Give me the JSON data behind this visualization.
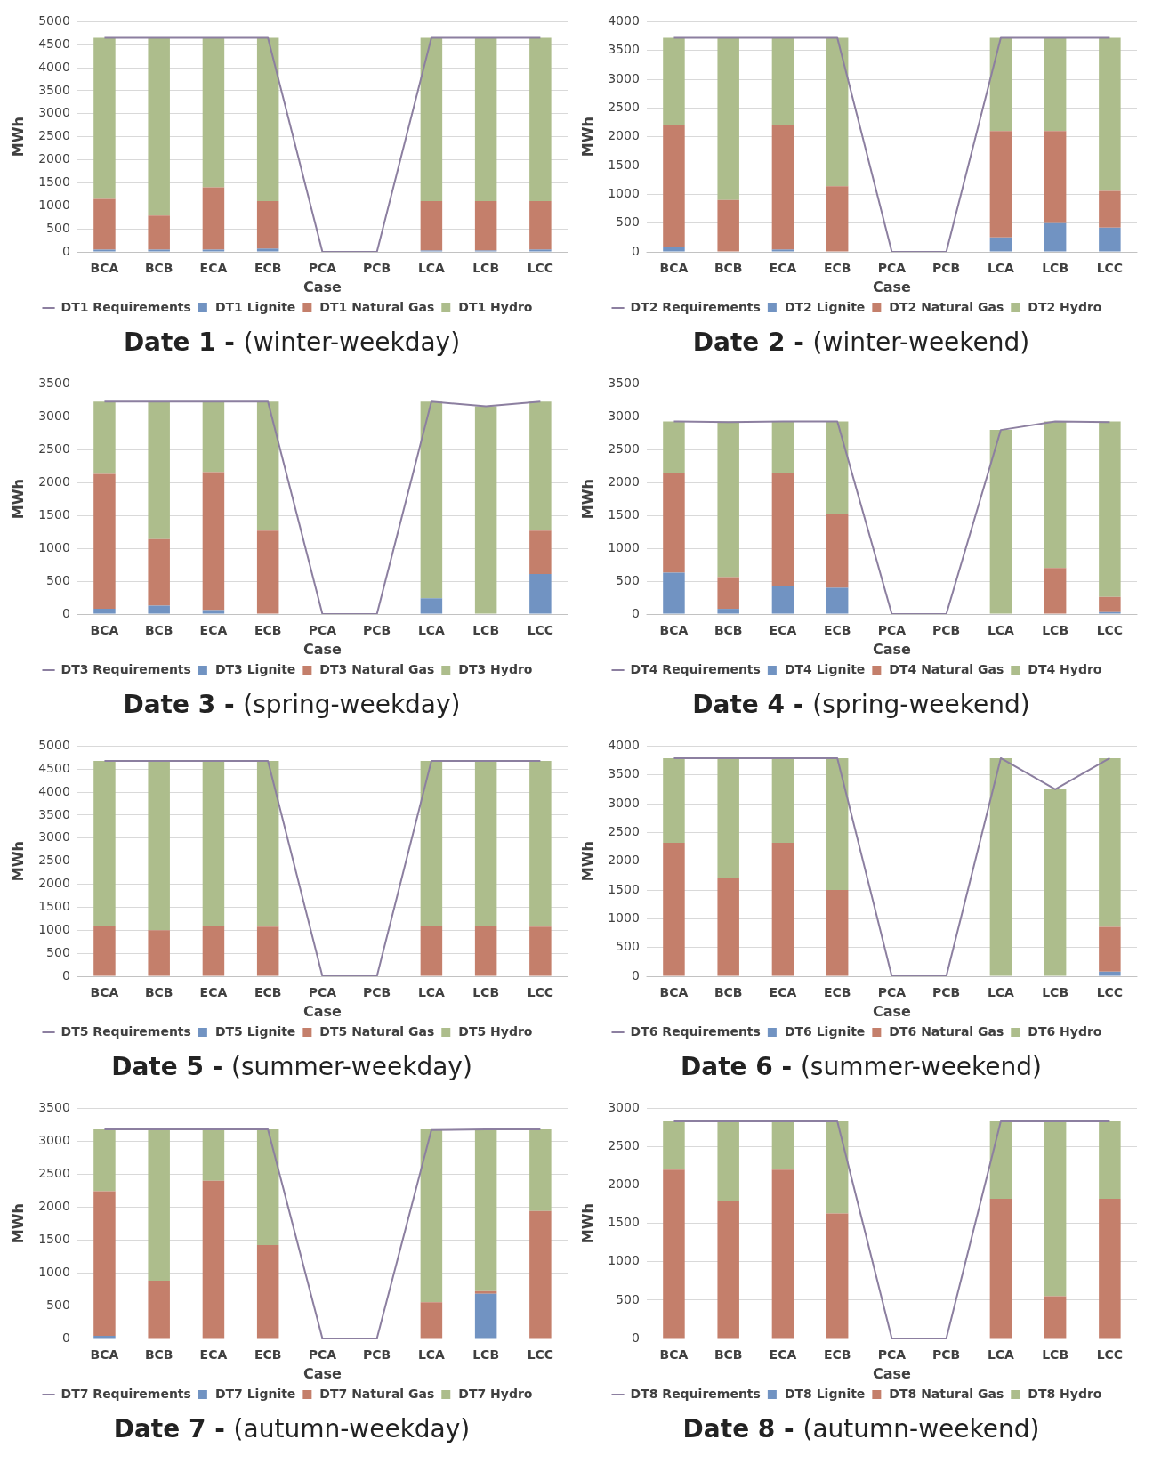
{
  "chart_data": [
    {
      "type": "bar",
      "title": "Date 1 - (winter-weekday)",
      "xlabel": "Case",
      "ylabel": "MWh",
      "stacked": true,
      "grid": "y",
      "legend": "bottom",
      "categories": [
        "BCA",
        "BCB",
        "ECA",
        "ECB",
        "PCA",
        "PCB",
        "LCA",
        "LCB",
        "LCC"
      ],
      "ylim": [
        0,
        5000
      ],
      "yticks": [
        0,
        500,
        1000,
        1500,
        2000,
        2500,
        3000,
        3500,
        4000,
        4500,
        5000
      ],
      "series": [
        {
          "name": "DT1 Lignite",
          "color": "#7193c2",
          "values": [
            50,
            50,
            50,
            70,
            0,
            0,
            30,
            30,
            50
          ]
        },
        {
          "name": "DT1 Natural Gas",
          "color": "#c47f6b",
          "values": [
            1100,
            740,
            1350,
            1030,
            0,
            0,
            1070,
            1070,
            1050
          ]
        },
        {
          "name": "DT1 Hydro",
          "color": "#adbd8c",
          "values": [
            3500,
            3860,
            3250,
            3550,
            0,
            0,
            3550,
            3550,
            3550
          ]
        },
        {
          "name": "DT1 Requirements",
          "type": "line",
          "color": "#8c7fa0",
          "values": [
            4650,
            4650,
            4650,
            4650,
            0,
            0,
            4650,
            4650,
            4650
          ]
        }
      ]
    },
    {
      "type": "bar",
      "title": "Date 2 - (winter-weekend)",
      "xlabel": "Case",
      "ylabel": "MWh",
      "stacked": true,
      "grid": "y",
      "legend": "bottom",
      "categories": [
        "BCA",
        "BCB",
        "ECA",
        "ECB",
        "PCA",
        "PCB",
        "LCA",
        "LCB",
        "LCC"
      ],
      "ylim": [
        0,
        4000
      ],
      "yticks": [
        0,
        500,
        1000,
        1500,
        2000,
        2500,
        3000,
        3500,
        4000
      ],
      "series": [
        {
          "name": "DT2 Lignite",
          "color": "#7193c2",
          "values": [
            80,
            0,
            40,
            0,
            0,
            0,
            250,
            500,
            420
          ]
        },
        {
          "name": "DT2 Natural Gas",
          "color": "#c47f6b",
          "values": [
            2120,
            900,
            2160,
            1140,
            0,
            0,
            1850,
            1600,
            640
          ]
        },
        {
          "name": "DT2 Hydro",
          "color": "#adbd8c",
          "values": [
            1520,
            2820,
            1520,
            2580,
            0,
            0,
            1620,
            1620,
            2660
          ]
        },
        {
          "name": "DT2 Requirements",
          "type": "line",
          "color": "#8c7fa0",
          "values": [
            3720,
            3720,
            3720,
            3720,
            0,
            0,
            3720,
            3720,
            3720
          ]
        }
      ]
    },
    {
      "type": "bar",
      "title": "Date 3 - (spring-weekday)",
      "xlabel": "Case",
      "ylabel": "MWh",
      "stacked": true,
      "grid": "y",
      "legend": "bottom",
      "categories": [
        "BCA",
        "BCB",
        "ECA",
        "ECB",
        "PCA",
        "PCB",
        "LCA",
        "LCB",
        "LCC"
      ],
      "ylim": [
        0,
        3500
      ],
      "yticks": [
        0,
        500,
        1000,
        1500,
        2000,
        2500,
        3000,
        3500
      ],
      "series": [
        {
          "name": "DT3 Lignite",
          "color": "#7193c2",
          "values": [
            80,
            130,
            60,
            0,
            0,
            0,
            240,
            0,
            610
          ]
        },
        {
          "name": "DT3 Natural Gas",
          "color": "#c47f6b",
          "values": [
            2050,
            1010,
            2100,
            1270,
            0,
            0,
            0,
            0,
            660
          ]
        },
        {
          "name": "DT3 Hydro",
          "color": "#adbd8c",
          "values": [
            1100,
            2090,
            1070,
            1960,
            0,
            0,
            2990,
            3160,
            1960
          ]
        },
        {
          "name": "DT3 Requirements",
          "type": "line",
          "color": "#8c7fa0",
          "values": [
            3230,
            3230,
            3230,
            3230,
            0,
            0,
            3230,
            3160,
            3230
          ]
        }
      ]
    },
    {
      "type": "bar",
      "title": "Date 4 - (spring-weekend)",
      "xlabel": "Case",
      "ylabel": "MWh",
      "stacked": true,
      "grid": "y",
      "legend": "bottom",
      "categories": [
        "BCA",
        "BCB",
        "ECA",
        "ECB",
        "PCA",
        "PCB",
        "LCA",
        "LCB",
        "LCC"
      ],
      "ylim": [
        0,
        3500
      ],
      "yticks": [
        0,
        500,
        1000,
        1500,
        2000,
        2500,
        3000,
        3500
      ],
      "series": [
        {
          "name": "DT4 Lignite",
          "color": "#7193c2",
          "values": [
            630,
            80,
            430,
            400,
            0,
            0,
            0,
            0,
            30
          ]
        },
        {
          "name": "DT4 Natural Gas",
          "color": "#c47f6b",
          "values": [
            1510,
            480,
            1710,
            1130,
            0,
            0,
            0,
            700,
            230
          ]
        },
        {
          "name": "DT4 Hydro",
          "color": "#adbd8c",
          "values": [
            790,
            2370,
            790,
            1400,
            0,
            0,
            2800,
            2230,
            2670
          ]
        },
        {
          "name": "DT4 Requirements",
          "type": "line",
          "color": "#8c7fa0",
          "values": [
            2930,
            2920,
            2930,
            2930,
            0,
            0,
            2800,
            2930,
            2920
          ]
        }
      ]
    },
    {
      "type": "bar",
      "title": "Date 5 - (summer-weekday)",
      "xlabel": "Case",
      "ylabel": "MWh",
      "stacked": true,
      "grid": "y",
      "legend": "bottom",
      "categories": [
        "BCA",
        "BCB",
        "ECA",
        "ECB",
        "PCA",
        "PCB",
        "LCA",
        "LCB",
        "LCC"
      ],
      "ylim": [
        0,
        5000
      ],
      "yticks": [
        0,
        500,
        1000,
        1500,
        2000,
        2500,
        3000,
        3500,
        4000,
        4500,
        5000
      ],
      "series": [
        {
          "name": "DT5 Lignite",
          "color": "#7193c2",
          "values": [
            0,
            0,
            0,
            0,
            0,
            0,
            0,
            0,
            0
          ]
        },
        {
          "name": "DT5 Natural Gas",
          "color": "#c47f6b",
          "values": [
            1100,
            1000,
            1100,
            1080,
            0,
            0,
            1100,
            1100,
            1080
          ]
        },
        {
          "name": "DT5 Hydro",
          "color": "#adbd8c",
          "values": [
            3580,
            3680,
            3580,
            3600,
            0,
            0,
            3580,
            3580,
            3600
          ]
        },
        {
          "name": "DT5 Requirements",
          "type": "line",
          "color": "#8c7fa0",
          "values": [
            4680,
            4680,
            4680,
            4680,
            0,
            0,
            4680,
            4680,
            4680
          ]
        }
      ]
    },
    {
      "type": "bar",
      "title": "Date 6 - (summer-weekend)",
      "xlabel": "Case",
      "ylabel": "MWh",
      "stacked": true,
      "grid": "y",
      "legend": "bottom",
      "categories": [
        "BCA",
        "BCB",
        "ECA",
        "ECB",
        "PCA",
        "PCB",
        "LCA",
        "LCB",
        "LCC"
      ],
      "ylim": [
        0,
        4000
      ],
      "yticks": [
        0,
        500,
        1000,
        1500,
        2000,
        2500,
        3000,
        3500,
        4000
      ],
      "series": [
        {
          "name": "DT6 Lignite",
          "color": "#7193c2",
          "values": [
            0,
            0,
            0,
            0,
            0,
            0,
            0,
            0,
            80
          ]
        },
        {
          "name": "DT6 Natural Gas",
          "color": "#c47f6b",
          "values": [
            2320,
            1710,
            2320,
            1500,
            0,
            0,
            0,
            0,
            780
          ]
        },
        {
          "name": "DT6 Hydro",
          "color": "#adbd8c",
          "values": [
            1470,
            2080,
            1470,
            2290,
            0,
            0,
            3790,
            3250,
            2930
          ]
        },
        {
          "name": "DT6 Requirements",
          "type": "line",
          "color": "#8c7fa0",
          "values": [
            3790,
            3790,
            3790,
            3790,
            0,
            0,
            3790,
            3250,
            3790
          ]
        }
      ]
    },
    {
      "type": "bar",
      "title": "Date 7 - (autumn-weekday)",
      "xlabel": "Case",
      "ylabel": "MWh",
      "stacked": true,
      "grid": "y",
      "legend": "bottom",
      "categories": [
        "BCA",
        "BCB",
        "ECA",
        "ECB",
        "PCA",
        "PCB",
        "LCA",
        "LCB",
        "LCC"
      ],
      "ylim": [
        0,
        3500
      ],
      "yticks": [
        0,
        500,
        1000,
        1500,
        2000,
        2500,
        3000,
        3500
      ],
      "series": [
        {
          "name": "DT7 Lignite",
          "color": "#7193c2",
          "values": [
            40,
            0,
            0,
            0,
            0,
            0,
            0,
            680,
            0
          ]
        },
        {
          "name": "DT7 Natural Gas",
          "color": "#c47f6b",
          "values": [
            2200,
            880,
            2400,
            1420,
            0,
            0,
            550,
            40,
            1940
          ]
        },
        {
          "name": "DT7 Hydro",
          "color": "#adbd8c",
          "values": [
            940,
            2300,
            780,
            1760,
            0,
            0,
            2630,
            2460,
            1240
          ]
        },
        {
          "name": "DT7 Requirements",
          "type": "line",
          "color": "#8c7fa0",
          "values": [
            3180,
            3180,
            3180,
            3180,
            0,
            0,
            3170,
            3180,
            3180
          ]
        }
      ]
    },
    {
      "type": "bar",
      "title": "Date 8 - (autumn-weekend)",
      "xlabel": "Case",
      "ylabel": "MWh",
      "stacked": true,
      "grid": "y",
      "legend": "bottom",
      "categories": [
        "BCA",
        "BCB",
        "ECA",
        "ECB",
        "PCA",
        "PCB",
        "LCA",
        "LCB",
        "LCC"
      ],
      "ylim": [
        0,
        3000
      ],
      "yticks": [
        0,
        500,
        1000,
        1500,
        2000,
        2500,
        3000
      ],
      "series": [
        {
          "name": "DT8 Lignite",
          "color": "#7193c2",
          "values": [
            0,
            0,
            0,
            0,
            0,
            0,
            0,
            0,
            0
          ]
        },
        {
          "name": "DT8 Natural Gas",
          "color": "#c47f6b",
          "values": [
            2200,
            1790,
            2200,
            1630,
            0,
            0,
            1820,
            550,
            1820
          ]
        },
        {
          "name": "DT8 Hydro",
          "color": "#adbd8c",
          "values": [
            630,
            1040,
            630,
            1200,
            0,
            0,
            1010,
            2280,
            1010
          ]
        },
        {
          "name": "DT8 Requirements",
          "type": "line",
          "color": "#8c7fa0",
          "values": [
            2830,
            2830,
            2830,
            2830,
            0,
            0,
            2830,
            2830,
            2830
          ]
        }
      ]
    }
  ]
}
